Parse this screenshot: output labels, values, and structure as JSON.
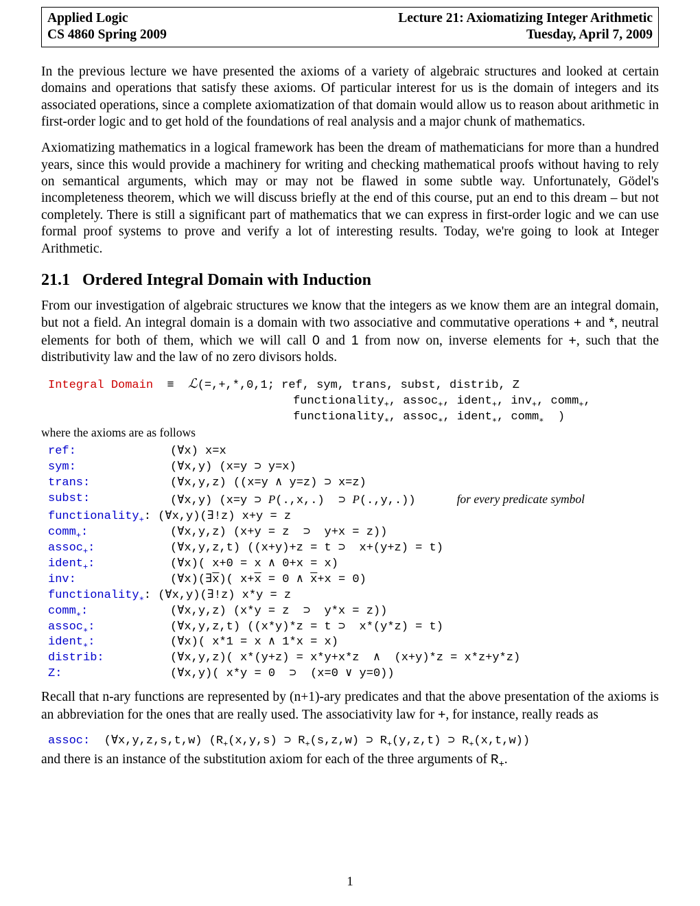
{
  "header": {
    "left1": "Applied Logic",
    "left2": "CS 4860 Spring 2009",
    "right1": "Lecture 21: Axiomatizing Integer Arithmetic",
    "right2": "Tuesday, April 7, 2009"
  },
  "para1": "In the previous lecture we have presented the axioms of a variety of algebraic structures and looked at certain domains and operations that satisfy these axioms. Of particular interest for us is the domain of integers and its associated operations, since a complete axiomatization of that domain would allow us to reason about arithmetic in first-order logic and to get hold of the foundations of real analysis and a major chunk of mathematics.",
  "para2": "Axiomatizing mathematics in a logical framework has been the dream of mathematicians for more than a hundred years, since this would provide a machinery for writing and checking mathematical proofs without having to rely on semantical arguments, which may or may not be flawed in some subtle way. Unfortunately, Gödel's incompleteness theorem, which we will discuss briefly at the end of this course, put an end to this dream – but not completely. There is still a significant part of mathematics that we can express in first-order logic and we can use formal proof systems to prove and verify a lot of interesting results. Today, we're going to look at Integer Arithmetic.",
  "section": {
    "number": "21.1",
    "title": "Ordered Integral Domain with Induction"
  },
  "para3a": "From our investigation of algebraic structures we know that the integers as we know them are an integral domain, but not a field. An integral domain is a domain with two associative and commutative operations ",
  "para3b": " and ",
  "para3c": ", neutral elements for both of them, which we will call ",
  "para3d": " and ",
  "para3e": " from now on, inverse elements for ",
  "para3f": ", such that the distributivity law and the law of no zero divisors holds.",
  "ops": {
    "plus": "+",
    "star": "*",
    "zero": "0",
    "one": "1"
  },
  "intdom": {
    "name": "Integral Domain",
    "line1": "(=,+,*,0,1; ref, sym, trans, subst, distrib, Z",
    "line2_a": "functionality",
    "line2_b": ", assoc",
    "line2_c": ", ident",
    "line2_d": ", inv",
    "line2_e": ", comm",
    "line2_f": ",",
    "line3_a": "functionality",
    "line3_b": ", assoc",
    "line3_c": ", ident",
    "line3_d": ", comm",
    "line3_end": "  )"
  },
  "note1": "where the axioms are as follows",
  "axioms": {
    "ref": {
      "label": "ref:",
      "expr": "(∀x) x=x"
    },
    "sym": {
      "label": "sym:",
      "expr": "(∀x,y) (x=y ⊃ y=x)"
    },
    "trans": {
      "label": "trans:",
      "expr": "(∀x,y,z) ((x=y ∧ y=z) ⊃ x=z)"
    },
    "subst": {
      "label": "subst:",
      "prefix": "(∀x,y) (x=y ⊃ ",
      "mid": "(.,x,.)  ⊃ ",
      "suffix": "(.,y,.))",
      "comment": "for every predicate symbol"
    },
    "funcp": {
      "label": "functionality",
      "sub": "+",
      "expr": ": (∀x,y)(∃!z) x+y = z"
    },
    "commp": {
      "label": "comm",
      "sub": "+",
      "expr": "(∀x,y,z) (x+y = z  ⊃  y+x = z))"
    },
    "assocp": {
      "label": "assoc",
      "sub": "+",
      "expr": "(∀x,y,z,t) ((x+y)+z = t ⊃  x+(y+z) = t)"
    },
    "identp": {
      "label": "ident",
      "sub": "+",
      "expr": "(∀x)( x+0 = x ∧ 0+x = x)"
    },
    "inv": {
      "label": "inv:",
      "expr_a": "(∀x)(∃",
      "expr_b": ")( x+",
      "expr_c": " = 0 ∧ ",
      "expr_d": "+x = 0)"
    },
    "funcs": {
      "label": "functionality",
      "sub": "∗",
      "expr": ": (∀x,y)(∃!z) x*y = z"
    },
    "comms": {
      "label": "comm",
      "sub": "∗",
      "expr": "(∀x,y,z) (x*y = z  ⊃  y*x = z))"
    },
    "assocs": {
      "label": "assoc",
      "sub": "∗",
      "expr": "(∀x,y,z,t) ((x*y)*z = t ⊃  x*(y*z) = t)"
    },
    "idents": {
      "label": "ident",
      "sub": "∗",
      "expr": "(∀x)( x*1 = x ∧ 1*x = x)"
    },
    "distrib": {
      "label": "distrib:",
      "expr": "(∀x,y,z)( x*(y+z) = x*y+x*z  ∧  (x+y)*z = x*z+y*z)"
    },
    "Z": {
      "label": "Z:",
      "expr": "(∀x,y)( x*y = 0  ⊃  (x=0 ∨ y=0))"
    }
  },
  "xbar": "x̄",
  "para4a": "Recall that n-ary functions are represented by (n+1)-ary predicates and that the above presentation of the axioms is an abbreviation for the ones that are really used. The associativity law for ",
  "para4b": ", for instance, really reads as",
  "assoc_ex": {
    "label": "assoc:",
    "prefix": "  (∀x,y,z,s,t,w) (R",
    "p1": "(x,y,s) ⊃ R",
    "p2": "(s,z,w) ⊃ R",
    "p3": "(y,z,t) ⊃ R",
    "p4": "(x,t,w))"
  },
  "para5a": "and there is an instance of the substitution axiom for each of the three arguments of ",
  "para5b": ".",
  "R": "R",
  "pagenum": "1"
}
